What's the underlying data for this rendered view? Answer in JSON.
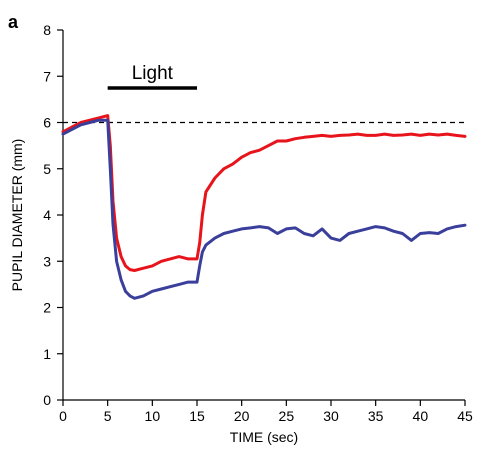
{
  "chart_data": {
    "type": "line",
    "panel_label": "a",
    "xlabel": "TIME (sec)",
    "ylabel": "PUPIL DIAMETER (mm)",
    "xlim": [
      0,
      45
    ],
    "ylim": [
      0,
      8
    ],
    "xticks": [
      0,
      5,
      10,
      15,
      20,
      25,
      30,
      35,
      40,
      45
    ],
    "yticks": [
      0,
      1,
      2,
      3,
      4,
      5,
      6,
      7,
      8
    ],
    "grid": false,
    "reference_line": {
      "y": 6,
      "style": "dashed"
    },
    "annotation": {
      "text": "Light",
      "x_start": 5,
      "x_end": 15
    },
    "series": [
      {
        "color": "#e8141b",
        "x": [
          0,
          1,
          2,
          3,
          4,
          5,
          5.3,
          5.6,
          6,
          6.5,
          7,
          7.5,
          8,
          9,
          10,
          11,
          12,
          13,
          14,
          15,
          15.3,
          15.6,
          16,
          17,
          18,
          19,
          20,
          21,
          22,
          23,
          24,
          25,
          26,
          27,
          28,
          29,
          30,
          31,
          32,
          33,
          34,
          35,
          36,
          37,
          38,
          39,
          40,
          41,
          42,
          43,
          44,
          45
        ],
        "y": [
          5.8,
          5.9,
          6.0,
          6.05,
          6.1,
          6.15,
          5.5,
          4.3,
          3.5,
          3.1,
          2.9,
          2.82,
          2.8,
          2.85,
          2.9,
          3.0,
          3.05,
          3.1,
          3.05,
          3.05,
          3.4,
          4.0,
          4.5,
          4.8,
          5.0,
          5.1,
          5.25,
          5.35,
          5.4,
          5.5,
          5.6,
          5.6,
          5.65,
          5.68,
          5.7,
          5.72,
          5.7,
          5.72,
          5.73,
          5.75,
          5.72,
          5.72,
          5.75,
          5.72,
          5.73,
          5.75,
          5.72,
          5.75,
          5.73,
          5.75,
          5.72,
          5.7
        ]
      },
      {
        "color": "#3a3f9b",
        "x": [
          0,
          1,
          2,
          3,
          4,
          5,
          5.3,
          5.6,
          6,
          6.5,
          7,
          7.5,
          8,
          9,
          10,
          11,
          12,
          13,
          14,
          15,
          15.3,
          15.6,
          16,
          17,
          18,
          19,
          20,
          21,
          22,
          23,
          24,
          25,
          26,
          27,
          28,
          29,
          30,
          31,
          32,
          33,
          34,
          35,
          36,
          37,
          38,
          39,
          40,
          41,
          42,
          43,
          44,
          45
        ],
        "y": [
          5.75,
          5.85,
          5.95,
          6.0,
          6.05,
          6.05,
          5.0,
          3.8,
          3.0,
          2.6,
          2.35,
          2.25,
          2.2,
          2.25,
          2.35,
          2.4,
          2.45,
          2.5,
          2.55,
          2.55,
          2.9,
          3.2,
          3.35,
          3.5,
          3.6,
          3.65,
          3.7,
          3.72,
          3.75,
          3.72,
          3.6,
          3.7,
          3.72,
          3.6,
          3.55,
          3.7,
          3.5,
          3.45,
          3.6,
          3.65,
          3.7,
          3.75,
          3.72,
          3.65,
          3.6,
          3.45,
          3.6,
          3.62,
          3.6,
          3.7,
          3.75,
          3.78
        ]
      }
    ]
  }
}
